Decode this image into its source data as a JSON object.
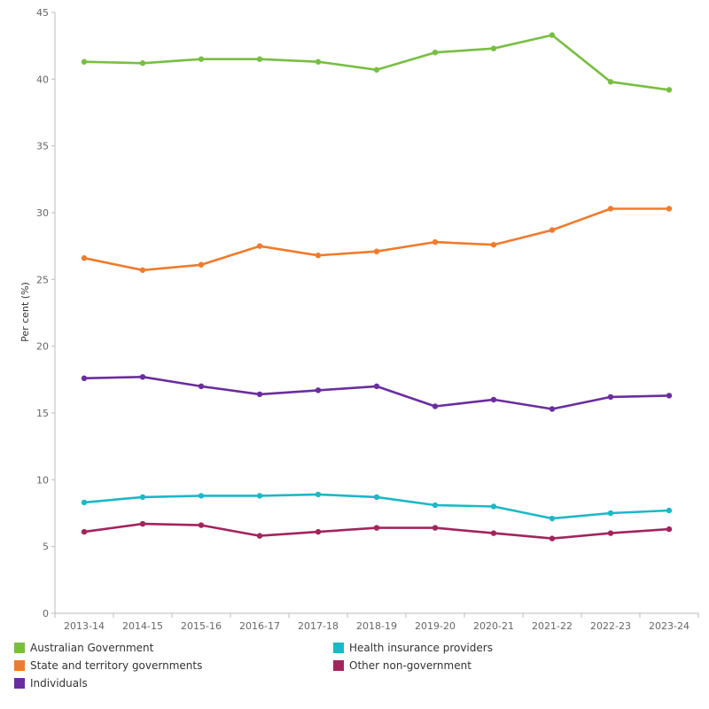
{
  "chart_data": {
    "type": "line",
    "ylabel": "Per cent (%)",
    "xlabel": "",
    "ylim": [
      0,
      45
    ],
    "yticks": [
      0,
      5,
      10,
      15,
      20,
      25,
      30,
      35,
      40,
      45
    ],
    "categories": [
      "2013-14",
      "2014-15",
      "2015-16",
      "2016-17",
      "2017-18",
      "2018-19",
      "2019-20",
      "2020-21",
      "2021-22",
      "2022-23",
      "2023-24"
    ],
    "grid": false,
    "legend_position": "bottom",
    "series": [
      {
        "name": "Australian Government",
        "color": "#78BE43",
        "values": [
          41.3,
          41.2,
          41.5,
          41.5,
          41.3,
          40.7,
          42.0,
          42.3,
          43.3,
          39.8,
          39.2
        ]
      },
      {
        "name": "State and territory governments",
        "color": "#F07B2C",
        "values": [
          26.6,
          25.7,
          26.1,
          27.5,
          26.8,
          27.1,
          27.8,
          27.6,
          28.7,
          30.3,
          30.3
        ]
      },
      {
        "name": "Individuals",
        "color": "#6A2E9E",
        "values": [
          17.6,
          17.7,
          17.0,
          16.4,
          16.7,
          17.0,
          15.5,
          16.0,
          15.3,
          16.2,
          16.3
        ]
      },
      {
        "name": "Health insurance providers",
        "color": "#1BB8C6",
        "values": [
          8.3,
          8.7,
          8.8,
          8.8,
          8.9,
          8.7,
          8.1,
          8.0,
          7.1,
          7.5,
          7.7
        ]
      },
      {
        "name": "Other non-government",
        "color": "#A3245C",
        "values": [
          6.1,
          6.7,
          6.6,
          5.8,
          6.1,
          6.4,
          6.4,
          6.0,
          5.6,
          6.0,
          6.3
        ]
      }
    ]
  }
}
